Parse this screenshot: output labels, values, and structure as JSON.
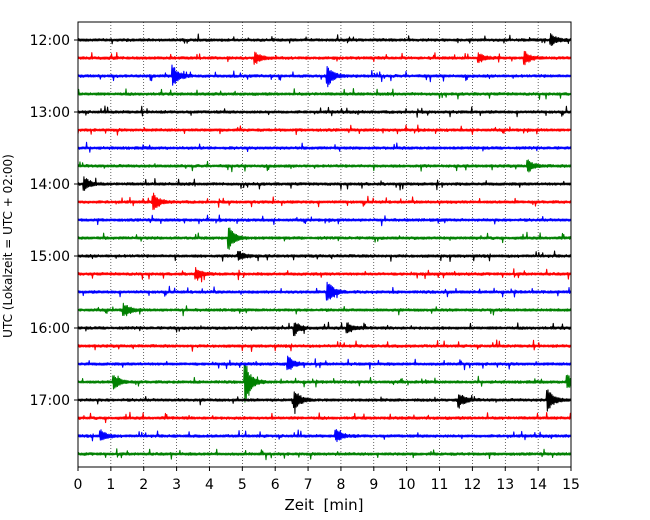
{
  "chart_data": {
    "type": "line",
    "xlabel": "Zeit  [min]",
    "ylabel": "UTC (Lokalzeit = UTC + 02:00)",
    "xlim": [
      0,
      15
    ],
    "x_ticks": [
      0,
      1,
      2,
      3,
      4,
      5,
      6,
      7,
      8,
      9,
      10,
      11,
      12,
      13,
      14,
      15
    ],
    "y_tick_labels": [
      "12:00",
      "13:00",
      "14:00",
      "15:00",
      "16:00",
      "17:00"
    ],
    "trace_start_time": "12:00",
    "trace_interval_minutes": 15,
    "trace_count": 24,
    "trace_colors": [
      "#000000",
      "#ff0000",
      "#0000ff",
      "#008000"
    ],
    "grid_x": true,
    "events": [
      {
        "trace": 1,
        "minute": 5.4,
        "amp": 0.3
      },
      {
        "trace": 1,
        "minute": 13.6,
        "amp": 0.35
      },
      {
        "trace": 1,
        "minute": 12.2,
        "amp": 0.25
      },
      {
        "trace": 2,
        "minute": 2.9,
        "amp": 0.55
      },
      {
        "trace": 2,
        "minute": 7.6,
        "amp": 0.55
      },
      {
        "trace": 0,
        "minute": 14.4,
        "amp": 0.3
      },
      {
        "trace": 7,
        "minute": 13.7,
        "amp": 0.3
      },
      {
        "trace": 8,
        "minute": 0.2,
        "amp": 0.4
      },
      {
        "trace": 9,
        "minute": 2.3,
        "amp": 0.45
      },
      {
        "trace": 11,
        "minute": 4.6,
        "amp": 0.6
      },
      {
        "trace": 12,
        "minute": 4.9,
        "amp": 0.25
      },
      {
        "trace": 13,
        "minute": 3.6,
        "amp": 0.3
      },
      {
        "trace": 14,
        "minute": 7.6,
        "amp": 0.65
      },
      {
        "trace": 15,
        "minute": 1.4,
        "amp": 0.35
      },
      {
        "trace": 16,
        "minute": 6.6,
        "amp": 0.35
      },
      {
        "trace": 16,
        "minute": 8.2,
        "amp": 0.3
      },
      {
        "trace": 18,
        "minute": 6.4,
        "amp": 0.4
      },
      {
        "trace": 19,
        "minute": 5.1,
        "amp": 1.1
      },
      {
        "trace": 19,
        "minute": 1.1,
        "amp": 0.4
      },
      {
        "trace": 19,
        "minute": 14.9,
        "amp": 0.4
      },
      {
        "trace": 20,
        "minute": 6.6,
        "amp": 0.55
      },
      {
        "trace": 20,
        "minute": 14.3,
        "amp": 0.65
      },
      {
        "trace": 20,
        "minute": 11.6,
        "amp": 0.4
      },
      {
        "trace": 22,
        "minute": 0.7,
        "amp": 0.3
      },
      {
        "trace": 22,
        "minute": 7.9,
        "amp": 0.3
      }
    ]
  }
}
